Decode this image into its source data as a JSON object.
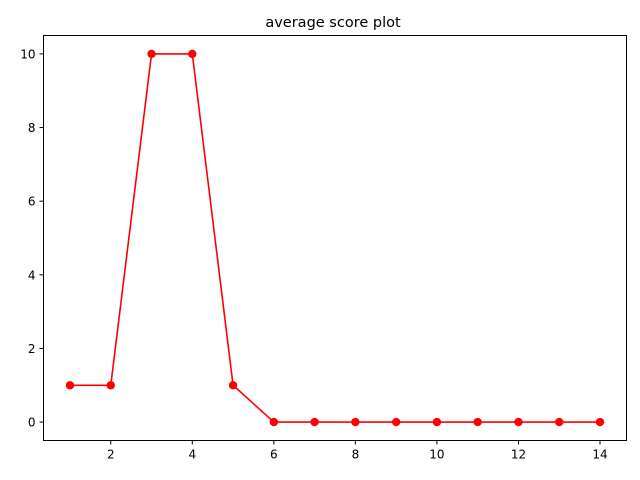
{
  "chart_data": {
    "type": "line",
    "title": "average score plot",
    "xlabel": "",
    "ylabel": "",
    "xlim": [
      0.35,
      14.65
    ],
    "ylim": [
      -0.5,
      10.5
    ],
    "xticks": [
      2,
      4,
      6,
      8,
      10,
      12,
      14
    ],
    "yticks": [
      0,
      2,
      4,
      6,
      8,
      10
    ],
    "grid": false,
    "legend": "none",
    "series": [
      {
        "color": "#ff0000",
        "marker": "circle",
        "x": [
          1,
          2,
          3,
          4,
          5,
          6,
          7,
          8,
          9,
          10,
          11,
          12,
          13,
          14
        ],
        "y": [
          1,
          1,
          10,
          10,
          1,
          0,
          0,
          0,
          0,
          0,
          0,
          0,
          0,
          0
        ]
      }
    ]
  }
}
